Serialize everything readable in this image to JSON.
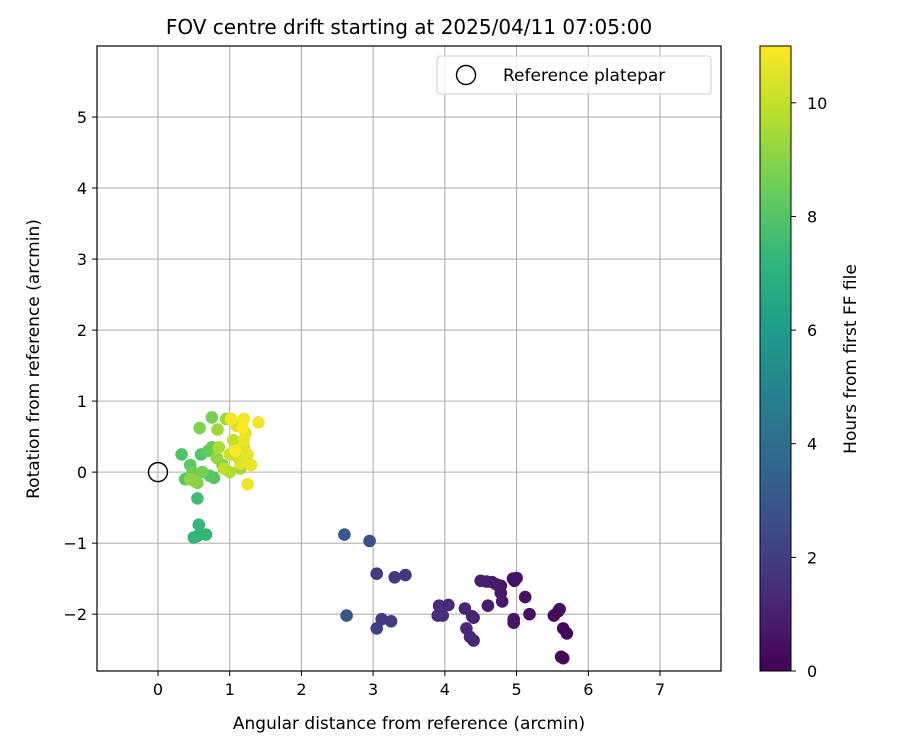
{
  "chart_data": {
    "type": "scatter",
    "title": "FOV centre drift starting at 2025/04/11 07:05:00",
    "xlabel": "Angular distance from reference (arcmin)",
    "ylabel": "Rotation from reference (arcmin)",
    "xlim": [
      -0.85,
      7.85
    ],
    "ylim": [
      -2.8,
      6.0
    ],
    "xticks": [
      0,
      1,
      2,
      3,
      4,
      5,
      6,
      7
    ],
    "yticks": [
      -2,
      -1,
      0,
      1,
      2,
      3,
      4,
      5
    ],
    "grid": true,
    "legend": {
      "position": "top-right",
      "entries": [
        "Reference platepar"
      ]
    },
    "reference_point": {
      "name": "Reference platepar",
      "x": 0,
      "y": 0
    },
    "colorbar": {
      "label": "Hours from first FF file",
      "min": 0,
      "max": 11,
      "ticks": [
        0,
        2,
        4,
        6,
        8,
        10
      ],
      "colormap": "viridis"
    },
    "series": [
      {
        "points": [
          {
            "x": 5.62,
            "y": -2.6,
            "h": 0.1
          },
          {
            "x": 5.65,
            "y": -2.62,
            "h": 0.15
          },
          {
            "x": 5.65,
            "y": -2.2,
            "h": 0.2
          },
          {
            "x": 5.7,
            "y": -2.27,
            "h": 0.2
          },
          {
            "x": 5.52,
            "y": -2.02,
            "h": 0.3
          },
          {
            "x": 5.58,
            "y": -1.96,
            "h": 0.3
          },
          {
            "x": 5.6,
            "y": -1.93,
            "h": 0.35
          },
          {
            "x": 5.18,
            "y": -2.0,
            "h": 0.4
          },
          {
            "x": 5.12,
            "y": -1.76,
            "h": 0.45
          },
          {
            "x": 4.95,
            "y": -1.5,
            "h": 0.5
          },
          {
            "x": 4.97,
            "y": -1.53,
            "h": 0.5
          },
          {
            "x": 5.0,
            "y": -1.49,
            "h": 0.55
          },
          {
            "x": 4.96,
            "y": -2.07,
            "h": 0.6
          },
          {
            "x": 4.96,
            "y": -2.12,
            "h": 0.6
          },
          {
            "x": 4.78,
            "y": -1.6,
            "h": 0.7
          },
          {
            "x": 4.78,
            "y": -1.7,
            "h": 0.7
          },
          {
            "x": 4.8,
            "y": -1.82,
            "h": 0.75
          },
          {
            "x": 4.72,
            "y": -1.58,
            "h": 0.8
          },
          {
            "x": 4.66,
            "y": -1.55,
            "h": 0.85
          },
          {
            "x": 4.6,
            "y": -1.88,
            "h": 0.9
          },
          {
            "x": 4.58,
            "y": -1.54,
            "h": 0.95
          },
          {
            "x": 4.5,
            "y": -1.53,
            "h": 1.0
          },
          {
            "x": 4.38,
            "y": -2.03,
            "h": 1.05
          },
          {
            "x": 4.4,
            "y": -2.05,
            "h": 1.1
          },
          {
            "x": 4.28,
            "y": -1.92,
            "h": 1.15
          },
          {
            "x": 4.3,
            "y": -2.2,
            "h": 1.2
          },
          {
            "x": 4.35,
            "y": -2.32,
            "h": 1.2
          },
          {
            "x": 4.4,
            "y": -2.37,
            "h": 1.25
          },
          {
            "x": 4.05,
            "y": -1.87,
            "h": 1.3
          },
          {
            "x": 3.92,
            "y": -1.88,
            "h": 1.35
          },
          {
            "x": 3.9,
            "y": -2.02,
            "h": 1.4
          },
          {
            "x": 3.97,
            "y": -2.02,
            "h": 1.45
          },
          {
            "x": 3.45,
            "y": -1.45,
            "h": 1.8
          },
          {
            "x": 3.3,
            "y": -1.48,
            "h": 1.85
          },
          {
            "x": 3.05,
            "y": -1.43,
            "h": 1.9
          },
          {
            "x": 3.12,
            "y": -2.07,
            "h": 1.9
          },
          {
            "x": 3.25,
            "y": -2.1,
            "h": 2.0
          },
          {
            "x": 3.05,
            "y": -2.2,
            "h": 2.05
          },
          {
            "x": 2.95,
            "y": -0.97,
            "h": 2.7
          },
          {
            "x": 2.63,
            "y": -2.02,
            "h": 2.95
          },
          {
            "x": 2.6,
            "y": -0.88,
            "h": 3.1
          },
          {
            "x": 0.5,
            "y": -0.92,
            "h": 7.2
          },
          {
            "x": 0.55,
            "y": -0.9,
            "h": 7.25
          },
          {
            "x": 0.67,
            "y": -0.88,
            "h": 7.3
          },
          {
            "x": 0.57,
            "y": -0.74,
            "h": 7.35
          },
          {
            "x": 0.55,
            "y": -0.37,
            "h": 7.6
          },
          {
            "x": 0.33,
            "y": 0.25,
            "h": 7.9
          },
          {
            "x": 0.78,
            "y": -0.08,
            "h": 7.95
          },
          {
            "x": 0.6,
            "y": 0.25,
            "h": 8.0
          },
          {
            "x": 0.38,
            "y": -0.1,
            "h": 8.05
          },
          {
            "x": 0.72,
            "y": -0.05,
            "h": 8.1
          },
          {
            "x": 0.45,
            "y": 0.1,
            "h": 8.2
          },
          {
            "x": 0.7,
            "y": 0.3,
            "h": 8.3
          },
          {
            "x": 0.75,
            "y": 0.35,
            "h": 8.4
          },
          {
            "x": 0.48,
            "y": 0.0,
            "h": 8.5
          },
          {
            "x": 0.62,
            "y": 0.0,
            "h": 8.6
          },
          {
            "x": 0.9,
            "y": 0.1,
            "h": 8.7
          },
          {
            "x": 0.75,
            "y": 0.77,
            "h": 8.7
          },
          {
            "x": 0.58,
            "y": 0.62,
            "h": 8.8
          },
          {
            "x": 0.55,
            "y": -0.15,
            "h": 8.9
          },
          {
            "x": 0.5,
            "y": -0.12,
            "h": 9.0
          },
          {
            "x": 0.45,
            "y": -0.1,
            "h": 9.1
          },
          {
            "x": 0.82,
            "y": 0.2,
            "h": 9.2
          },
          {
            "x": 0.95,
            "y": 0.75,
            "h": 9.3
          },
          {
            "x": 0.83,
            "y": 0.6,
            "h": 9.4
          },
          {
            "x": 1.15,
            "y": 0.05,
            "h": 9.5
          },
          {
            "x": 0.85,
            "y": 0.35,
            "h": 9.6
          },
          {
            "x": 1.0,
            "y": 0.0,
            "h": 9.7
          },
          {
            "x": 0.92,
            "y": 0.05,
            "h": 9.9
          },
          {
            "x": 1.05,
            "y": 0.45,
            "h": 10.0
          },
          {
            "x": 1.12,
            "y": 0.2,
            "h": 10.1
          },
          {
            "x": 1.0,
            "y": 0.25,
            "h": 10.2
          },
          {
            "x": 1.2,
            "y": 0.35,
            "h": 10.3
          },
          {
            "x": 1.1,
            "y": 0.65,
            "h": 10.4
          },
          {
            "x": 1.15,
            "y": 0.12,
            "h": 10.5
          },
          {
            "x": 1.25,
            "y": 0.25,
            "h": 10.6
          },
          {
            "x": 1.22,
            "y": 0.55,
            "h": 10.6
          },
          {
            "x": 1.2,
            "y": 0.45,
            "h": 10.7
          },
          {
            "x": 1.3,
            "y": 0.1,
            "h": 10.7
          },
          {
            "x": 1.25,
            "y": -0.17,
            "h": 10.8
          },
          {
            "x": 1.4,
            "y": 0.7,
            "h": 10.8
          },
          {
            "x": 1.2,
            "y": 0.75,
            "h": 10.9
          },
          {
            "x": 1.02,
            "y": 0.75,
            "h": 10.9
          },
          {
            "x": 1.18,
            "y": 0.62,
            "h": 10.95
          },
          {
            "x": 1.08,
            "y": 0.3,
            "h": 11.0
          }
        ]
      }
    ]
  }
}
